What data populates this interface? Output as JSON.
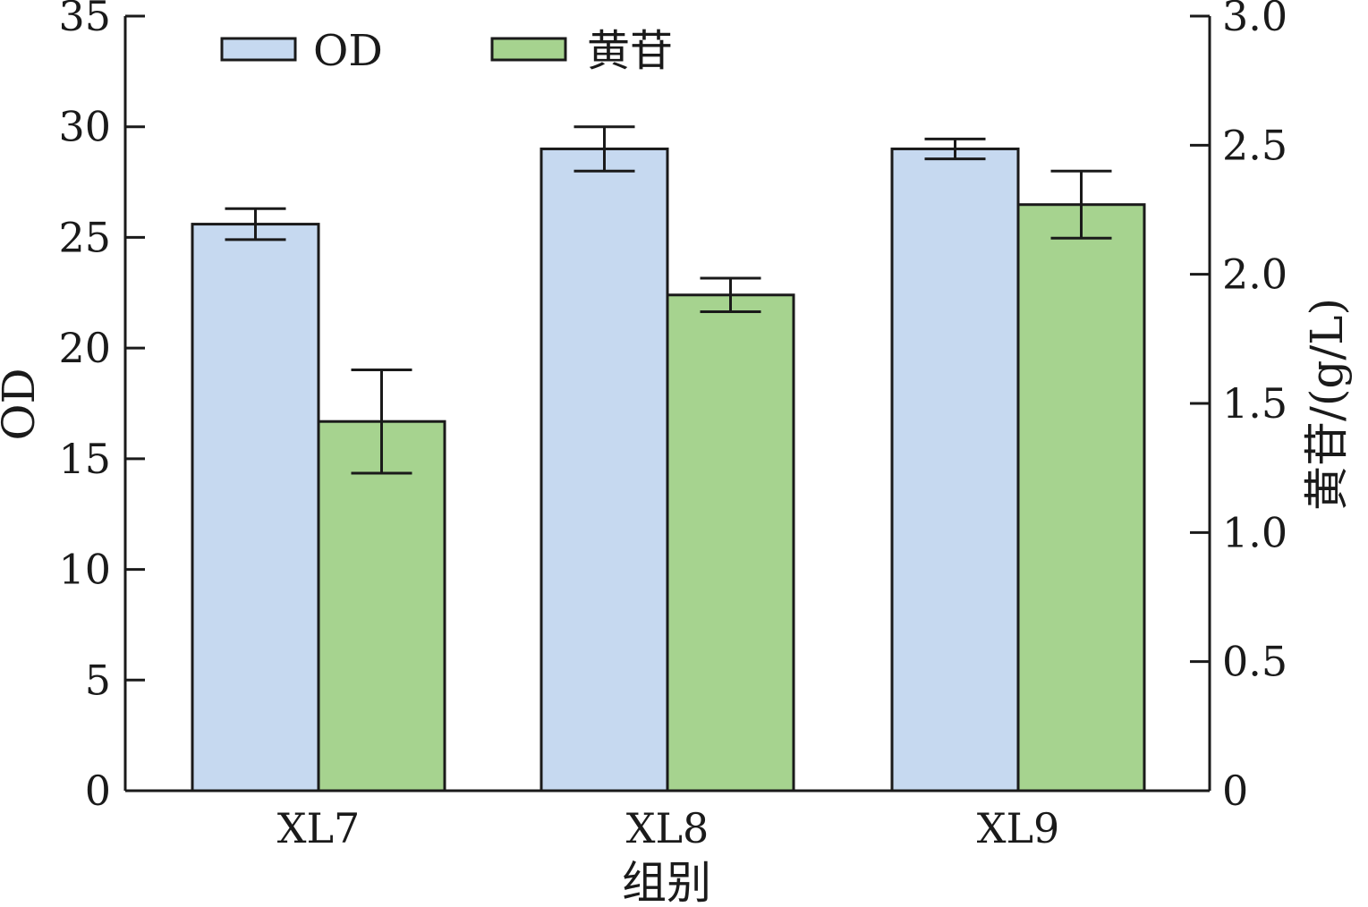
{
  "chart_data": {
    "type": "bar",
    "categories": [
      "XL7",
      "XL8",
      "XL9"
    ],
    "series": [
      {
        "name": "OD",
        "axis": "left",
        "values": [
          25.6,
          29.0,
          29.0
        ],
        "errors": [
          0.7,
          1.0,
          0.45
        ]
      },
      {
        "name": "黄苷",
        "axis": "right",
        "values": [
          1.43,
          1.92,
          2.27
        ],
        "errors": [
          0.2,
          0.065,
          0.13
        ]
      }
    ],
    "xlabel": "组别",
    "ylabel": "OD",
    "y2label": "黄苷/(g/L)",
    "ylim": [
      0,
      35
    ],
    "y2lim": [
      0,
      3.0
    ],
    "yticks": [
      "0",
      "5",
      "10",
      "15",
      "20",
      "25",
      "30",
      "35"
    ],
    "y2ticks": [
      "0",
      "0.5",
      "1.0",
      "1.5",
      "2.0",
      "2.5",
      "3.0"
    ],
    "legend_position": "top-left",
    "grid": false,
    "colors": {
      "OD": "#c6d9f0",
      "黄苷": "#a6d38f",
      "edge": "#1a1a1a"
    }
  }
}
